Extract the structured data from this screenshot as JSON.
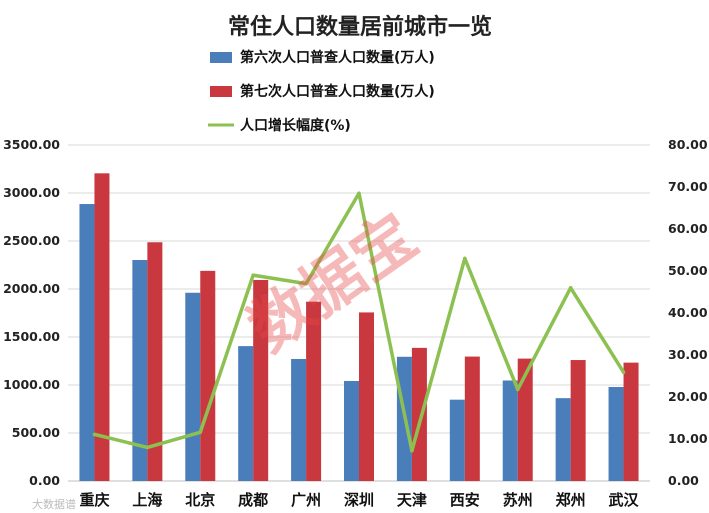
{
  "chart_data": {
    "type": "bar",
    "title": "常住人口数量居前城市一览",
    "categories": [
      "重庆",
      "上海",
      "北京",
      "成都",
      "广州",
      "深圳",
      "天津",
      "西安",
      "苏州",
      "郑州",
      "武汉"
    ],
    "series": [
      {
        "name": "第六次人口普查人口数量(万人)",
        "type": "bar",
        "axis": "left",
        "color": "#4a7ebb",
        "values": [
          2885,
          2302,
          1961,
          1405,
          1271,
          1042,
          1294,
          847,
          1047,
          863,
          979
        ]
      },
      {
        "name": "第七次人口普查人口数量(万人)",
        "type": "bar",
        "axis": "left",
        "color": "#c9383e",
        "values": [
          3205,
          2487,
          2189,
          2094,
          1868,
          1756,
          1387,
          1296,
          1275,
          1260,
          1233
        ]
      },
      {
        "name": "人口增长幅度(%)",
        "type": "line",
        "axis": "right",
        "color": "#8cc152",
        "values": [
          11.1,
          8.0,
          11.6,
          49.0,
          47.0,
          68.5,
          7.2,
          53.0,
          21.8,
          46.0,
          25.9
        ]
      }
    ],
    "y_left": {
      "ylim": [
        0,
        3500
      ],
      "ticks": [
        "0.00",
        "500.00",
        "1000.00",
        "1500.00",
        "2000.00",
        "2500.00",
        "3000.00",
        "3500.00"
      ]
    },
    "y_right": {
      "ylim": [
        0,
        80
      ],
      "ticks": [
        "0.00",
        "10.00",
        "20.00",
        "30.00",
        "40.00",
        "50.00",
        "60.00",
        "70.00",
        "80.00"
      ]
    },
    "grid": true,
    "legend_position": "top-center"
  },
  "watermark": "数据宝",
  "credit": "大数据谱"
}
